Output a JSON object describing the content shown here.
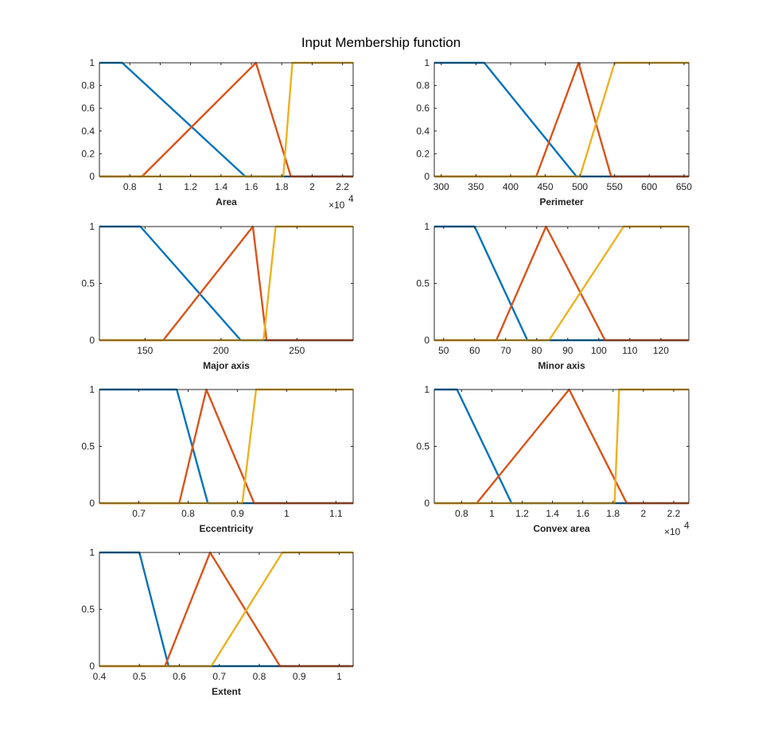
{
  "figure": {
    "title": "Input Membership function"
  },
  "colors": {
    "low": "#0072BD",
    "medium": "#D95319",
    "high": "#EDB120",
    "axis": "#262626"
  },
  "chart_data": [
    {
      "type": "line",
      "xlabel": "Area",
      "exponent_label": "×10",
      "exponent_power": "4",
      "xlim": [
        0.6,
        2.27
      ],
      "ylim": [
        0,
        1
      ],
      "xticks": [
        0.8,
        1,
        1.2,
        1.4,
        1.6,
        1.8,
        2,
        2.2
      ],
      "xtick_labels": [
        "0.8",
        "1",
        "1.2",
        "1.4",
        "1.6",
        "1.8",
        "2",
        "2.2"
      ],
      "yticks": [
        0,
        0.2,
        0.4,
        0.6,
        0.8,
        1
      ],
      "ytick_labels": [
        "0",
        "0.2",
        "0.4",
        "0.6",
        "0.8",
        "1"
      ],
      "series": [
        {
          "color": "#0072BD",
          "x": [
            0.6,
            0.75,
            1.56,
            2.27
          ],
          "y": [
            1,
            1,
            0,
            0
          ]
        },
        {
          "color": "#D95319",
          "x": [
            0.6,
            0.88,
            1.63,
            1.86,
            2.27
          ],
          "y": [
            0,
            0,
            1,
            0,
            0
          ]
        },
        {
          "color": "#EDB120",
          "x": [
            0.6,
            1.81,
            1.87,
            2.27
          ],
          "y": [
            0,
            0,
            1,
            1
          ]
        }
      ]
    },
    {
      "type": "line",
      "xlabel": "Perimeter",
      "xlim": [
        290,
        657
      ],
      "ylim": [
        0,
        1
      ],
      "xticks": [
        300,
        350,
        400,
        450,
        500,
        550,
        600,
        650
      ],
      "xtick_labels": [
        "300",
        "350",
        "400",
        "450",
        "500",
        "550",
        "600",
        "650"
      ],
      "yticks": [
        0,
        0.2,
        0.4,
        0.6,
        0.8,
        1
      ],
      "ytick_labels": [
        "0",
        "0.2",
        "0.4",
        "0.6",
        "0.8",
        "1"
      ],
      "series": [
        {
          "color": "#0072BD",
          "x": [
            290,
            362,
            495,
            657
          ],
          "y": [
            1,
            1,
            0,
            0
          ]
        },
        {
          "color": "#D95319",
          "x": [
            290,
            437,
            498,
            545,
            657
          ],
          "y": [
            0,
            0,
            1,
            0,
            0
          ]
        },
        {
          "color": "#EDB120",
          "x": [
            290,
            500,
            550,
            657
          ],
          "y": [
            0,
            0,
            1,
            1
          ]
        }
      ]
    },
    {
      "type": "line",
      "xlabel": "Major axis",
      "xlim": [
        120,
        287
      ],
      "ylim": [
        0,
        1
      ],
      "xticks": [
        150,
        200,
        250
      ],
      "xtick_labels": [
        "150",
        "200",
        "250"
      ],
      "yticks": [
        0,
        0.5,
        1
      ],
      "ytick_labels": [
        "0",
        "0.5",
        "1"
      ],
      "series": [
        {
          "color": "#0072BD",
          "x": [
            120,
            147,
            213,
            287
          ],
          "y": [
            1,
            1,
            0,
            0
          ]
        },
        {
          "color": "#D95319",
          "x": [
            120,
            162,
            221,
            230,
            287
          ],
          "y": [
            0,
            0,
            1,
            0,
            0
          ]
        },
        {
          "color": "#EDB120",
          "x": [
            120,
            228,
            236,
            287
          ],
          "y": [
            0,
            0,
            1,
            1
          ]
        }
      ]
    },
    {
      "type": "line",
      "xlabel": "Minor axis",
      "xlim": [
        47,
        129
      ],
      "ylim": [
        0,
        1
      ],
      "xticks": [
        50,
        60,
        70,
        80,
        90,
        100,
        110,
        120
      ],
      "xtick_labels": [
        "50",
        "60",
        "70",
        "80",
        "90",
        "100",
        "110",
        "120"
      ],
      "yticks": [
        0,
        0.5,
        1
      ],
      "ytick_labels": [
        "0",
        "0.5",
        "1"
      ],
      "series": [
        {
          "color": "#0072BD",
          "x": [
            47,
            60,
            77,
            129
          ],
          "y": [
            1,
            1,
            0,
            0
          ]
        },
        {
          "color": "#D95319",
          "x": [
            47,
            67,
            83,
            102,
            129
          ],
          "y": [
            0,
            0,
            1,
            0,
            0
          ]
        },
        {
          "color": "#EDB120",
          "x": [
            47,
            84,
            108,
            129
          ],
          "y": [
            0,
            0,
            1,
            1
          ]
        }
      ]
    },
    {
      "type": "line",
      "xlabel": "Eccentricity",
      "xlim": [
        0.62,
        1.135
      ],
      "ylim": [
        0,
        1
      ],
      "xticks": [
        0.7,
        0.8,
        0.9,
        1,
        1.1
      ],
      "xtick_labels": [
        "0.7",
        "0.8",
        "0.9",
        "1",
        "1.1"
      ],
      "yticks": [
        0,
        0.5,
        1
      ],
      "ytick_labels": [
        "0",
        "0.5",
        "1"
      ],
      "series": [
        {
          "color": "#0072BD",
          "x": [
            0.62,
            0.777,
            0.84,
            1.135
          ],
          "y": [
            1,
            1,
            0,
            0
          ]
        },
        {
          "color": "#D95319",
          "x": [
            0.62,
            0.782,
            0.837,
            0.934,
            1.135
          ],
          "y": [
            0,
            0,
            1,
            0,
            0
          ]
        },
        {
          "color": "#EDB120",
          "x": [
            0.62,
            0.91,
            0.938,
            1.135
          ],
          "y": [
            0,
            0,
            1,
            1
          ]
        }
      ]
    },
    {
      "type": "line",
      "xlabel": "Convex area",
      "exponent_label": "×10",
      "exponent_power": "4",
      "xlim": [
        0.62,
        2.3
      ],
      "ylim": [
        0,
        1
      ],
      "xticks": [
        0.8,
        1,
        1.2,
        1.4,
        1.6,
        1.8,
        2,
        2.2
      ],
      "xtick_labels": [
        "0.8",
        "1",
        "1.2",
        "1.4",
        "1.6",
        "1.8",
        "2",
        "2.2"
      ],
      "yticks": [
        0,
        0.5,
        1
      ],
      "ytick_labels": [
        "0",
        "0.5",
        "1"
      ],
      "series": [
        {
          "color": "#0072BD",
          "x": [
            0.62,
            0.77,
            1.13,
            2.3
          ],
          "y": [
            1,
            1,
            0,
            0
          ]
        },
        {
          "color": "#D95319",
          "x": [
            0.62,
            0.9,
            1.51,
            1.89,
            2.3
          ],
          "y": [
            0,
            0,
            1,
            0,
            0
          ]
        },
        {
          "color": "#EDB120",
          "x": [
            0.62,
            1.81,
            1.84,
            2.3
          ],
          "y": [
            0,
            0,
            1,
            1
          ]
        }
      ]
    },
    {
      "type": "line",
      "xlabel": "Extent",
      "xlim": [
        0.4,
        1.035
      ],
      "ylim": [
        0,
        1
      ],
      "xticks": [
        0.4,
        0.5,
        0.6,
        0.7,
        0.8,
        0.9,
        1
      ],
      "xtick_labels": [
        "0.4",
        "0.5",
        "0.6",
        "0.7",
        "0.8",
        "0.9",
        "1"
      ],
      "yticks": [
        0,
        0.5,
        1
      ],
      "ytick_labels": [
        "0",
        "0.5",
        "1"
      ],
      "series": [
        {
          "color": "#0072BD",
          "x": [
            0.4,
            0.5,
            0.573,
            1.035
          ],
          "y": [
            1,
            1,
            0,
            0
          ]
        },
        {
          "color": "#D95319",
          "x": [
            0.4,
            0.564,
            0.677,
            0.852,
            1.035
          ],
          "y": [
            0,
            0,
            1,
            0,
            0
          ]
        },
        {
          "color": "#EDB120",
          "x": [
            0.4,
            0.68,
            0.858,
            1.035
          ],
          "y": [
            0,
            0,
            1,
            1
          ]
        }
      ]
    }
  ]
}
